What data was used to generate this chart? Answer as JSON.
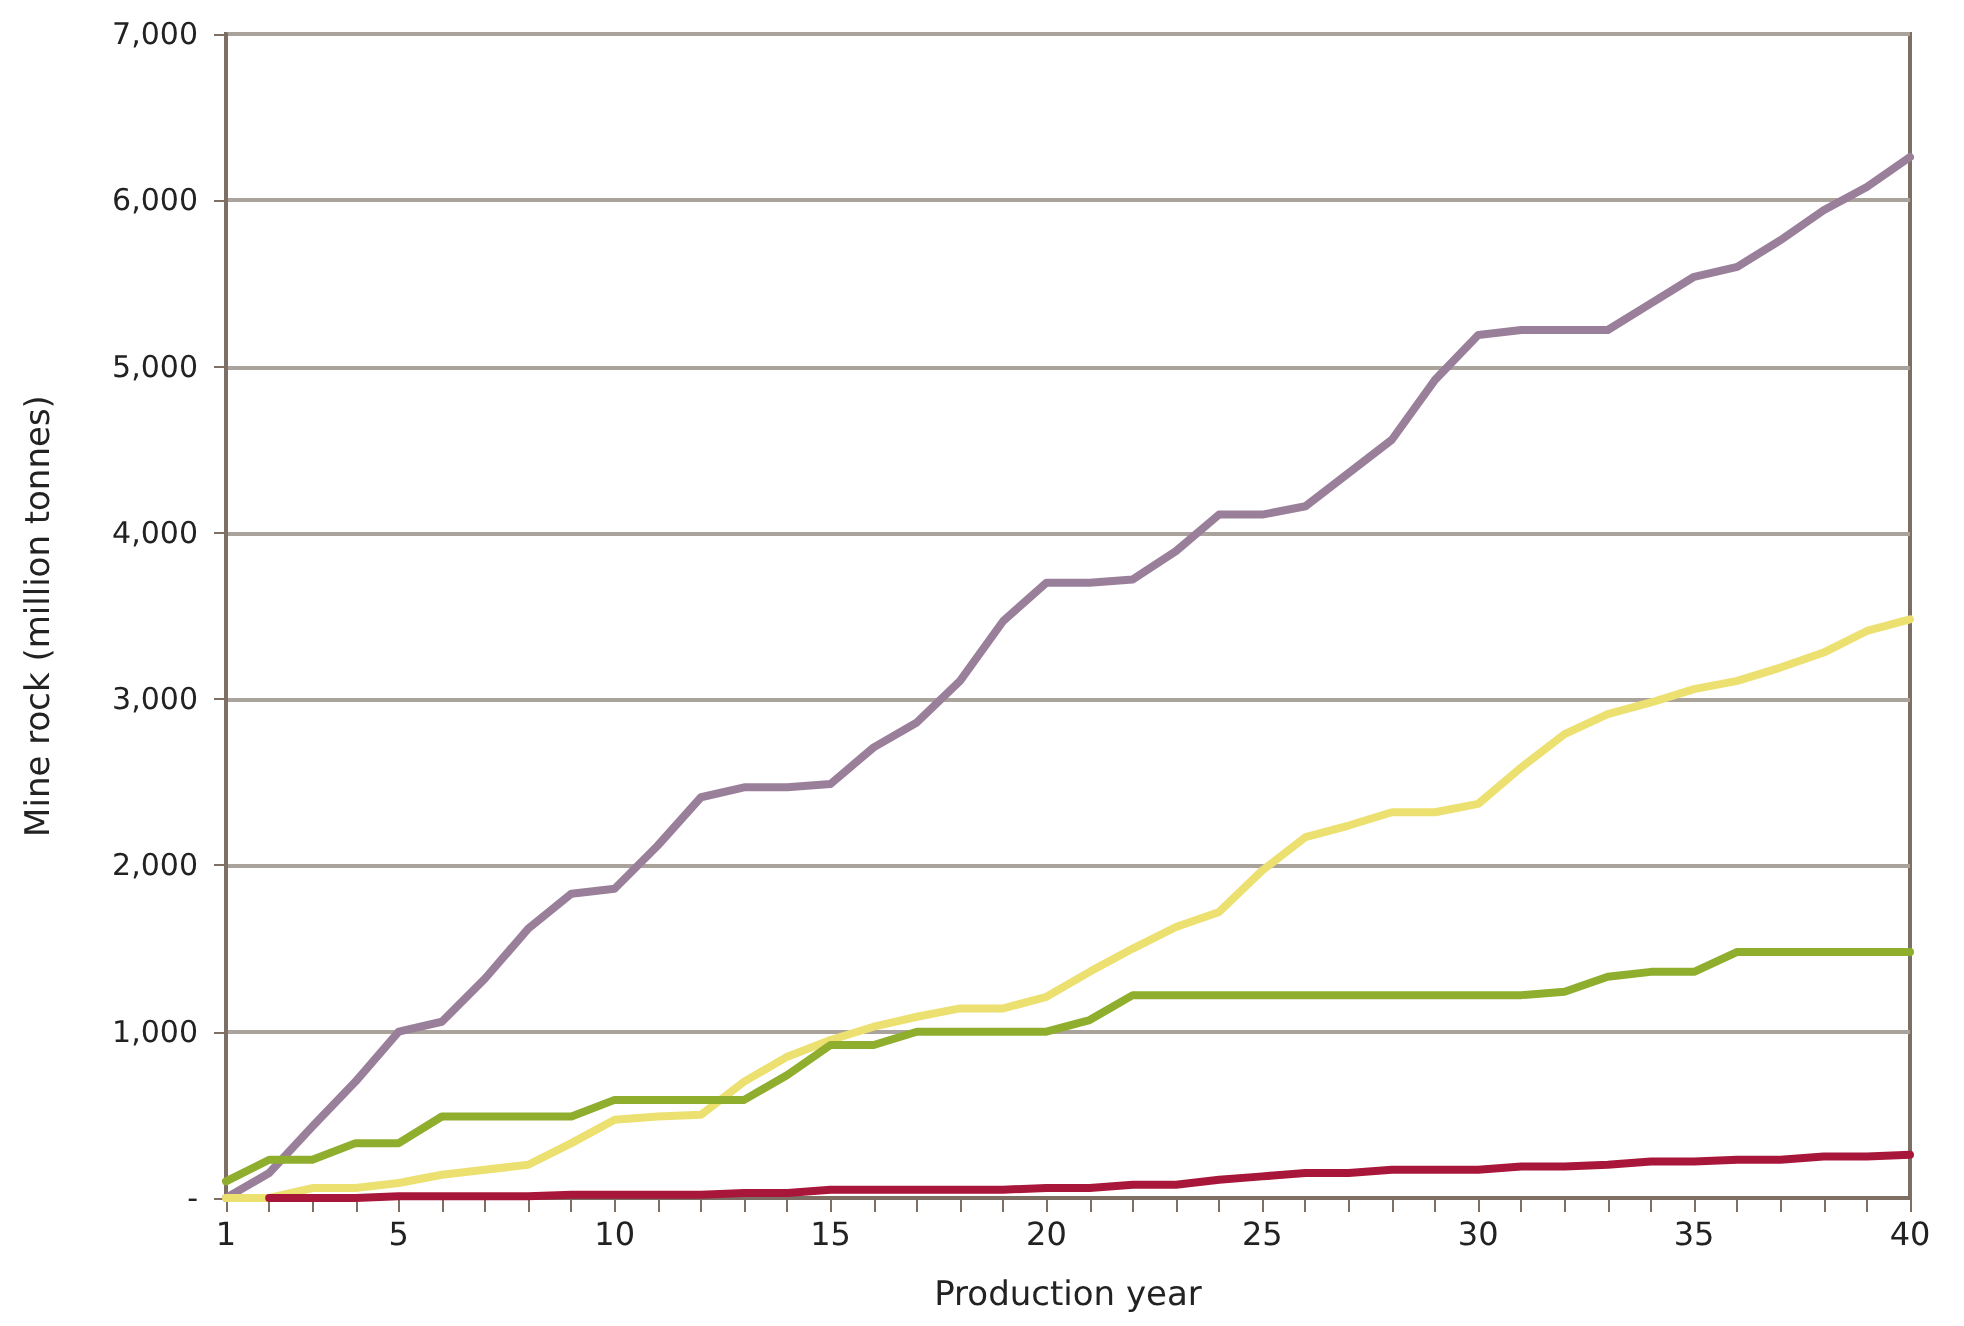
{
  "chart_data": {
    "type": "line",
    "xlabel": "Production year",
    "ylabel": "Mine rock (million tonnes)",
    "x": [
      1,
      2,
      3,
      4,
      5,
      6,
      7,
      8,
      9,
      10,
      11,
      12,
      13,
      14,
      15,
      16,
      17,
      18,
      19,
      20,
      21,
      22,
      23,
      24,
      25,
      26,
      27,
      28,
      29,
      30,
      31,
      32,
      33,
      34,
      35,
      36,
      37,
      38,
      39,
      40
    ],
    "series": [
      {
        "color": "#9a7f9b",
        "values": [
          0,
          150,
          430,
          700,
          1000,
          1060,
          1320,
          1620,
          1830,
          1860,
          2120,
          2410,
          2470,
          2470,
          2490,
          2710,
          2860,
          3110,
          3470,
          3700,
          3700,
          3720,
          3890,
          4110,
          4110,
          4160,
          4360,
          4560,
          4920,
          5190,
          5220,
          5220,
          5220,
          5380,
          5540,
          5600,
          5760,
          5940,
          6080,
          6260
        ]
      },
      {
        "color": "#ece070",
        "values": [
          0,
          0,
          60,
          60,
          90,
          140,
          170,
          200,
          330,
          470,
          490,
          500,
          700,
          850,
          950,
          1030,
          1090,
          1140,
          1140,
          1210,
          1360,
          1500,
          1630,
          1720,
          1970,
          2170,
          2240,
          2320,
          2320,
          2370,
          2590,
          2790,
          2910,
          2980,
          3060,
          3110,
          3190,
          3280,
          3410,
          3480
        ]
      },
      {
        "color": "#8fae2e",
        "values": [
          100,
          230,
          230,
          330,
          330,
          490,
          490,
          490,
          490,
          590,
          590,
          590,
          590,
          740,
          920,
          920,
          1000,
          1000,
          1000,
          1000,
          1070,
          1220,
          1220,
          1220,
          1220,
          1220,
          1220,
          1220,
          1220,
          1220,
          1220,
          1240,
          1330,
          1360,
          1360,
          1480,
          1480,
          1480,
          1480,
          1480
        ]
      },
      {
        "color": "#a8173a",
        "values": [
          null,
          0,
          0,
          0,
          10,
          10,
          10,
          10,
          20,
          20,
          20,
          20,
          30,
          30,
          50,
          50,
          50,
          50,
          50,
          60,
          60,
          80,
          80,
          110,
          130,
          150,
          150,
          170,
          170,
          170,
          190,
          190,
          200,
          220,
          220,
          230,
          230,
          250,
          250,
          260
        ]
      }
    ],
    "xlim": [
      1,
      40
    ],
    "xticks": [
      1,
      {
        "value": 2,
        "label": null
      },
      {
        "value": 3,
        "label": null
      },
      {
        "value": 4,
        "label": null
      },
      5,
      {
        "value": 6,
        "label": null
      },
      {
        "value": 7,
        "label": null
      },
      {
        "value": 8,
        "label": null
      },
      {
        "value": 9,
        "label": null
      },
      10,
      {
        "value": 11,
        "label": null
      },
      {
        "value": 12,
        "label": null
      },
      {
        "value": 13,
        "label": null
      },
      {
        "value": 14,
        "label": null
      },
      15,
      {
        "value": 16,
        "label": null
      },
      {
        "value": 17,
        "label": null
      },
      {
        "value": 18,
        "label": null
      },
      {
        "value": 19,
        "label": null
      },
      20,
      {
        "value": 21,
        "label": null
      },
      {
        "value": 22,
        "label": null
      },
      {
        "value": 23,
        "label": null
      },
      {
        "value": 24,
        "label": null
      },
      25,
      {
        "value": 26,
        "label": null
      },
      {
        "value": 27,
        "label": null
      },
      {
        "value": 28,
        "label": null
      },
      {
        "value": 29,
        "label": null
      },
      30,
      {
        "value": 31,
        "label": null
      },
      {
        "value": 32,
        "label": null
      },
      {
        "value": 33,
        "label": null
      },
      {
        "value": 34,
        "label": null
      },
      35,
      {
        "value": 36,
        "label": null
      },
      {
        "value": 37,
        "label": null
      },
      {
        "value": 38,
        "label": null
      },
      {
        "value": 39,
        "label": null
      },
      40
    ],
    "ylim": [
      0,
      7000
    ],
    "yticks": [
      {
        "value": 0,
        "label": "-"
      },
      {
        "value": 1000,
        "label": "1,000"
      },
      {
        "value": 2000,
        "label": "2,000"
      },
      {
        "value": 3000,
        "label": "3,000"
      },
      {
        "value": 4000,
        "label": "4,000"
      },
      {
        "value": 5000,
        "label": "5,000"
      },
      {
        "value": 6000,
        "label": "6,000"
      },
      {
        "value": 7000,
        "label": "7,000"
      }
    ],
    "grid": "y",
    "marker": "none",
    "line_style": "solid"
  }
}
